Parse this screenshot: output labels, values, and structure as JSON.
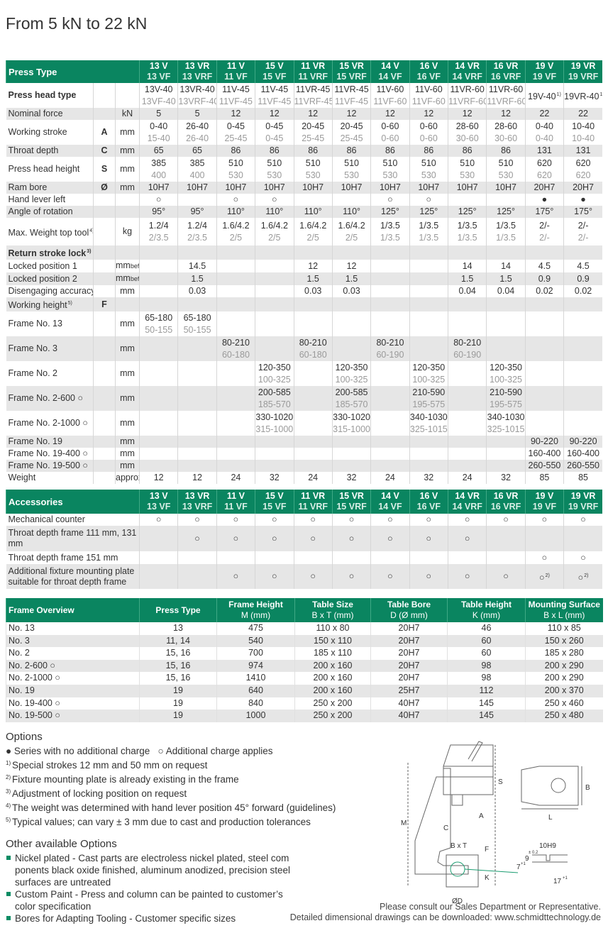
{
  "title": "From 5 kN to 22 kN",
  "colors": {
    "header_green": "#0a8560",
    "row_gray": "#e6e6e6",
    "bullet_green": "#0a8c64"
  },
  "press_types": [
    [
      "13 V",
      "13 VF"
    ],
    [
      "13 VR",
      "13 VRF"
    ],
    [
      "11 V",
      "11 VF"
    ],
    [
      "15 V",
      "15 VF"
    ],
    [
      "11 VR",
      "11 VRF"
    ],
    [
      "15 VR",
      "15 VRF"
    ],
    [
      "14 V",
      "14 VF"
    ],
    [
      "16 V",
      "16 VF"
    ],
    [
      "14 VR",
      "14 VRF"
    ],
    [
      "16 VR",
      "16 VRF"
    ],
    [
      "19 V",
      "19 VF"
    ],
    [
      "19 VR",
      "19 VRF"
    ]
  ],
  "main_table": {
    "header": "Press Type",
    "rows": [
      {
        "label": "Press head type",
        "bold": true,
        "cells": [
          [
            "13V-40",
            "13VF-40"
          ],
          [
            "13VR-40",
            "13VRF-40"
          ],
          [
            "11V-45",
            "11VF-45"
          ],
          [
            "11V-45",
            "11VF-45"
          ],
          [
            "11VR-45",
            "11VRF-45"
          ],
          [
            "11VR-45",
            "11VF-45"
          ],
          [
            "11V-60",
            "11VF-60"
          ],
          [
            "11V-60",
            "11VF-60"
          ],
          [
            "11VR-60",
            "11VRF-60"
          ],
          [
            "11VR-60",
            "11VRF-60"
          ],
          {
            "v": [
              "19V-40"
            ],
            "sup": "1)"
          },
          {
            "v": [
              "19VR-40"
            ],
            "sup": "1)"
          }
        ]
      },
      {
        "label": "Nominal force",
        "unit": "kN",
        "cells": [
          "5",
          "5",
          "12",
          "12",
          "12",
          "12",
          "12",
          "12",
          "12",
          "12",
          "22",
          "22"
        ]
      },
      {
        "label": "Working stroke",
        "letter": "A",
        "unit": "mm",
        "cells": [
          [
            "0-40",
            "15-40"
          ],
          [
            "26-40",
            "26-40"
          ],
          [
            "0-45",
            "25-45"
          ],
          [
            "0-45",
            "0-45"
          ],
          [
            "20-45",
            "25-45"
          ],
          [
            "20-45",
            "25-45"
          ],
          [
            "0-60",
            "0-60"
          ],
          [
            "0-60",
            "0-60"
          ],
          [
            "28-60",
            "30-60"
          ],
          [
            "28-60",
            "30-60"
          ],
          [
            "0-40",
            "0-40"
          ],
          [
            "10-40",
            "10-40"
          ]
        ]
      },
      {
        "label": "Throat depth",
        "letter": "C",
        "unit": "mm",
        "cells": [
          "65",
          "65",
          "86",
          "86",
          "86",
          "86",
          "86",
          "86",
          "86",
          "86",
          "131",
          "131"
        ]
      },
      {
        "label": "Press head height",
        "letter": "S",
        "unit": "mm",
        "cells": [
          [
            "385",
            "400"
          ],
          [
            "385",
            "400"
          ],
          [
            "510",
            "530"
          ],
          [
            "510",
            "530"
          ],
          [
            "510",
            "530"
          ],
          [
            "510",
            "530"
          ],
          [
            "510",
            "530"
          ],
          [
            "510",
            "530"
          ],
          [
            "510",
            "530"
          ],
          [
            "510",
            "530"
          ],
          [
            "620",
            "620"
          ],
          [
            "620",
            "620"
          ]
        ]
      },
      {
        "label": "Ram bore",
        "letter": "Ø",
        "unit": "mm",
        "cells": [
          "10H7",
          "10H7",
          "10H7",
          "10H7",
          "10H7",
          "10H7",
          "10H7",
          "10H7",
          "10H7",
          "10H7",
          "20H7",
          "20H7"
        ]
      },
      {
        "label": "Hand lever left",
        "cells": [
          "○",
          "",
          "○",
          "○",
          "",
          "",
          "○",
          "○",
          "",
          "",
          "●",
          "●"
        ]
      },
      {
        "label": "Angle of rotation",
        "cells": [
          "95°",
          "95°",
          "110°",
          "110°",
          "110°",
          "110°",
          "125°",
          "125°",
          "125°",
          "125°",
          "175°",
          "175°"
        ]
      },
      {
        "label": "Max. Weight top tool",
        "sup": "4)",
        "unit": "kg",
        "cells": [
          [
            "1.2/4",
            "2/3.5"
          ],
          [
            "1.2/4",
            "2/3.5"
          ],
          [
            "1.6/4.2",
            "2/5"
          ],
          [
            "1.6/4.2",
            "2/5"
          ],
          [
            "1.6/4.2",
            "2/5"
          ],
          [
            "1.6/4.2",
            "2/5"
          ],
          [
            "1/3.5",
            "1/3.5"
          ],
          [
            "1/3.5",
            "1/3.5"
          ],
          [
            "1/3.5",
            "1/3.5"
          ],
          [
            "1/3.5",
            "1/3.5"
          ],
          [
            "2/-",
            "2/-"
          ],
          [
            "2/-",
            "2/-"
          ]
        ]
      },
      {
        "label": "Return stroke lock",
        "sup": "3)",
        "bold": true,
        "cells": [
          "",
          "",
          "",
          "",
          "",
          "",
          "",
          "",
          "",
          "",
          "",
          ""
        ]
      },
      {
        "label": "Locked position 1",
        "unit": "mm",
        "unit_note": "bef. BDC",
        "cells": [
          "",
          "14.5",
          "",
          "",
          "12",
          "12",
          "",
          "",
          "14",
          "14",
          "4.5",
          "4.5"
        ]
      },
      {
        "label": "Locked position 2",
        "unit": "mm",
        "unit_note": "bef. BDC",
        "cells": [
          "",
          "1.5",
          "",
          "",
          "1.5",
          "1.5",
          "",
          "",
          "1.5",
          "1.5",
          "0.9",
          "0.9"
        ]
      },
      {
        "label": "Disengaging accuracy",
        "unit": "mm",
        "cells": [
          "",
          "0.03",
          "",
          "",
          "0.03",
          "0.03",
          "",
          "",
          "0.04",
          "0.04",
          "0.02",
          "0.02"
        ]
      },
      {
        "label": "Working height",
        "sup": "5)",
        "letter": "F",
        "cells": [
          "",
          "",
          "",
          "",
          "",
          "",
          "",
          "",
          "",
          "",
          "",
          ""
        ]
      },
      {
        "label": "Frame No. 13",
        "unit": "mm",
        "tall": true,
        "cells": [
          [
            "65-180",
            "50-155"
          ],
          [
            "65-180",
            "50-155"
          ],
          "",
          "",
          "",
          "",
          "",
          "",
          "",
          "",
          "",
          ""
        ]
      },
      {
        "label": "Frame No. 3",
        "unit": "mm",
        "tall": true,
        "cells": [
          "",
          "",
          [
            "80-210",
            "60-180"
          ],
          "",
          [
            "80-210",
            "60-180"
          ],
          "",
          [
            "80-210",
            "60-190"
          ],
          "",
          [
            "80-210",
            "60-190"
          ],
          "",
          "",
          ""
        ]
      },
      {
        "label": "Frame No. 2",
        "unit": "mm",
        "tall": true,
        "cells": [
          "",
          "",
          "",
          [
            "120-350",
            "100-325"
          ],
          "",
          [
            "120-350",
            "100-325"
          ],
          "",
          [
            "120-350",
            "100-325"
          ],
          "",
          [
            "120-350",
            "100-325"
          ],
          "",
          ""
        ]
      },
      {
        "label": "Frame No. 2-600 ○",
        "unit": "mm",
        "tall": true,
        "cells": [
          "",
          "",
          "",
          [
            "200-585",
            "185-570"
          ],
          "",
          [
            "200-585",
            "185-570"
          ],
          "",
          [
            "210-590",
            "195-575"
          ],
          "",
          [
            "210-590",
            "195-575"
          ],
          "",
          ""
        ]
      },
      {
        "label": "Frame No. 2-1000 ○",
        "unit": "mm",
        "tall": true,
        "cells": [
          "",
          "",
          "",
          [
            "330-1020",
            "315-1000"
          ],
          "",
          [
            "330-1020",
            "315-1000"
          ],
          "",
          [
            "340-1030",
            "325-1015"
          ],
          "",
          [
            "340-1030",
            "325-1015"
          ],
          "",
          ""
        ]
      },
      {
        "label": "Frame No. 19",
        "unit": "mm",
        "cells": [
          "",
          "",
          "",
          "",
          "",
          "",
          "",
          "",
          "",
          "",
          "90-220",
          "90-220"
        ]
      },
      {
        "label": "Frame No. 19-400 ○",
        "unit": "mm",
        "cells": [
          "",
          "",
          "",
          "",
          "",
          "",
          "",
          "",
          "",
          "",
          "160-400",
          "160-400"
        ]
      },
      {
        "label": "Frame No. 19-500 ○",
        "unit": "mm",
        "cells": [
          "",
          "",
          "",
          "",
          "",
          "",
          "",
          "",
          "",
          "",
          "260-550",
          "260-550"
        ]
      },
      {
        "label": "Weight",
        "unit": "approx. kg",
        "cells": [
          "12",
          "12",
          "24",
          "32",
          "24",
          "32",
          "24",
          "32",
          "24",
          "32",
          "85",
          "85"
        ]
      }
    ]
  },
  "accessories": {
    "header": "Accessories",
    "rows": [
      {
        "label": "Mechanical counter",
        "cells": [
          "○",
          "○",
          "○",
          "○",
          "○",
          "○",
          "○",
          "○",
          "○",
          "○",
          "○",
          "○"
        ]
      },
      {
        "label": "Throat depth frame 111 mm, 131 mm",
        "cells": [
          "",
          "○",
          "○",
          "○",
          "○",
          "○",
          "○",
          "○",
          "○",
          "",
          "",
          ""
        ]
      },
      {
        "label": "Throat depth frame 151 mm",
        "cells": [
          "",
          "",
          "",
          "",
          "",
          "",
          "",
          "",
          "",
          "",
          "○",
          "○"
        ]
      },
      {
        "label": "Additional fixture mounting plate suitable for throat depth frame",
        "cells": [
          "",
          "",
          "○",
          "○",
          "○",
          "○",
          "○",
          "○",
          "○",
          "○",
          {
            "v": [
              "○"
            ],
            "sup": "2)"
          },
          {
            "v": [
              "○"
            ],
            "sup": "2)"
          }
        ]
      }
    ]
  },
  "frame_overview": {
    "headers": [
      [
        "Frame Overview"
      ],
      [
        "Press Type"
      ],
      [
        "Frame Height",
        "M (mm)"
      ],
      [
        "Table Size",
        "B x T (mm)"
      ],
      [
        "Table Bore",
        "D (Ø mm)"
      ],
      [
        "Table Height",
        "K (mm)"
      ],
      [
        "Mounting Surface",
        "B x L (mm)"
      ]
    ],
    "rows": [
      [
        "No. 13",
        "13",
        "475",
        "110 x 80",
        "20H7",
        "46",
        "110 x 85"
      ],
      [
        "No. 3",
        "11, 14",
        "540",
        "150 x 110",
        "20H7",
        "60",
        "150 x 260"
      ],
      [
        "No. 2",
        "15, 16",
        "700",
        "185 x 110",
        "20H7",
        "60",
        "185 x 280"
      ],
      [
        "No. 2-600 ○",
        "15, 16",
        "974",
        "200 x 160",
        "20H7",
        "98",
        "200 x 290"
      ],
      [
        "No. 2-1000 ○",
        "15, 16",
        "1410",
        "200 x 160",
        "20H7",
        "98",
        "200 x 290"
      ],
      [
        "No. 19",
        "19",
        "640",
        "200 x 160",
        "25H7",
        "112",
        "200 x 370"
      ],
      [
        "No. 19-400 ○",
        "19",
        "840",
        "250 x 200",
        "40H7",
        "145",
        "250 x 460"
      ],
      [
        "No. 19-500 ○",
        "19",
        "1000",
        "250 x 200",
        "40H7",
        "145",
        "250 x 480"
      ]
    ]
  },
  "options": {
    "title": "Options",
    "legend_filled": "● Series with no additional charge",
    "legend_open": "○ Additional charge applies",
    "footnotes": [
      {
        "mark": "1)",
        "text": "Special strokes 12 mm and 50 mm on request"
      },
      {
        "mark": "2)",
        "text": "Fixture mounting plate is already existing in the frame"
      },
      {
        "mark": "3)",
        "text": "Adjustment of locking position on request"
      },
      {
        "mark": "4)",
        "text": "The weight was determined with hand lever position 45° forward (guidelines)"
      },
      {
        "mark": "5)",
        "text": "Typical values; can vary ± 3 mm due to cast and production tolerances"
      }
    ],
    "other_title": "Other available Options",
    "other_items": [
      "Nickel plated - Cast parts are electroless nickel plated, steel com ponents black oxide finished, aluminum anodized, precision steel surfaces are untreated",
      "Custom Paint - Press and column can be painted to customer’s color specification",
      "Bores for Adapting Tooling - Customer specific sizes"
    ]
  },
  "diagram": {
    "labels": {
      "M": "M",
      "S": "S",
      "A": "A",
      "C": "C",
      "F": "F",
      "K": "K",
      "BxT": "B x T",
      "D": "ØD",
      "B": "B",
      "L": "L",
      "groove": "10H9",
      "g": "9",
      "g_tol": "± 0.2",
      "h7": "7",
      "h7_tol": "+1",
      "w17": "17",
      "w17_tol": "+1"
    }
  },
  "footer": {
    "line1": "Please consult our Sales Department or Representative.",
    "line2": "Detailed dimensional drawings can be downloaded: www.schmidttechnology.de"
  }
}
